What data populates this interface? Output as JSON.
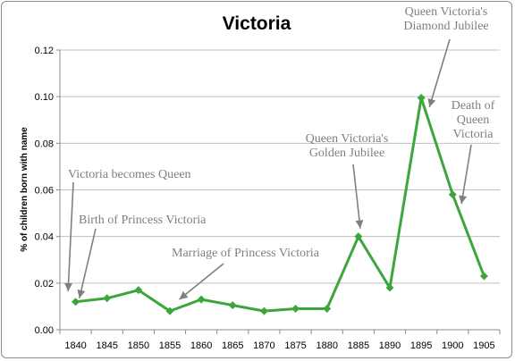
{
  "chart_data": {
    "type": "line",
    "title": "Victoria",
    "xlabel": "",
    "ylabel": "% of children born with name",
    "categories": [
      "1840",
      "1845",
      "1850",
      "1855",
      "1860",
      "1865",
      "1870",
      "1875",
      "1880",
      "1885",
      "1890",
      "1895",
      "1900",
      "1905"
    ],
    "series": [
      {
        "values": [
          0.012,
          0.0135,
          0.017,
          0.008,
          0.013,
          0.0105,
          0.008,
          0.009,
          0.009,
          0.04,
          0.018,
          0.0995,
          0.058,
          0.023
        ]
      }
    ],
    "ylim": [
      0,
      0.12
    ],
    "yticks": [
      0,
      0.02,
      0.04,
      0.06,
      0.08,
      0.1,
      0.12
    ],
    "ytick_labels": [
      "0.00",
      "0.02",
      "0.04",
      "0.06",
      "0.08",
      "0.10",
      "0.12"
    ],
    "grid": true,
    "legend": false,
    "line_color": "#3ca63c",
    "grid_color": "#bfbfbf",
    "annotation_color": "#7f7f7f",
    "annotations": [
      {
        "lines": [
          "Victoria becomes Queen"
        ],
        "target_year": 1838.8,
        "target_value": 0.0165
      },
      {
        "lines": [
          "Birth of Princess Victoria"
        ],
        "target_year": 1840.6,
        "target_value": 0.0135
      },
      {
        "lines": [
          "Marriage of Princess Victoria"
        ],
        "target_year": 1856.5,
        "target_value": 0.013
      },
      {
        "lines": [
          "Queen Victoria's",
          "Golden Jubilee"
        ],
        "target_year": 1885.3,
        "target_value": 0.0435
      },
      {
        "lines": [
          "Queen Victoria's",
          "Diamond Jubilee"
        ],
        "target_year": 1896.3,
        "target_value": 0.0955
      },
      {
        "lines": [
          "Death of",
          "Queen",
          "Victoria"
        ],
        "target_year": 1901.4,
        "target_value": 0.054
      }
    ]
  }
}
